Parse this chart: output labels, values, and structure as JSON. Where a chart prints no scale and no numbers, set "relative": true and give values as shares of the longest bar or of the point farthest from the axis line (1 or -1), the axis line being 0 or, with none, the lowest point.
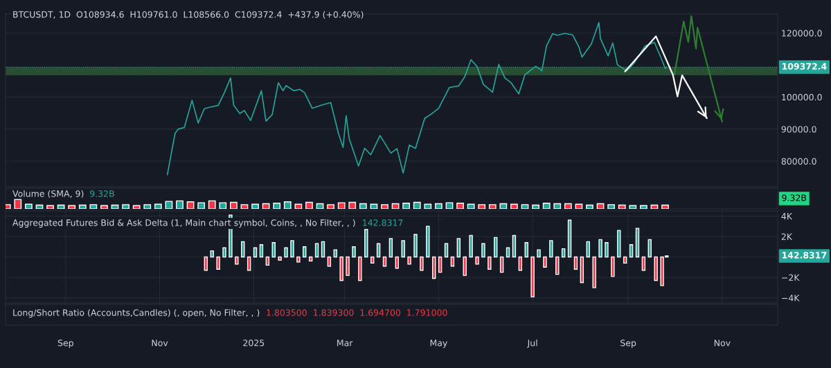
{
  "chart_data": [
    {
      "type": "line",
      "annotations": [
        "BTCUSDT, 1D  O108934.6  H109761.0  L108566.0  C109372.4  +437.9 (+0.40%)"
      ],
      "x": [
        "2024-11-06",
        "2024-11-11",
        "2024-11-13",
        "2024-11-17",
        "2024-11-22",
        "2024-11-26",
        "2024-11-30",
        "2024-12-05",
        "2024-12-09",
        "2024-12-13",
        "2024-12-17",
        "2024-12-19",
        "2024-12-23",
        "2024-12-26",
        "2024-12-30",
        "2025-01-06",
        "2025-01-09",
        "2025-01-13",
        "2025-01-17",
        "2025-01-20",
        "2025-01-22",
        "2025-01-27",
        "2025-01-31",
        "2025-02-03",
        "2025-02-08",
        "2025-02-14",
        "2025-02-20",
        "2025-02-25",
        "2025-02-28",
        "2025-03-02",
        "2025-03-04",
        "2025-03-10",
        "2025-03-14",
        "2025-03-18",
        "2025-03-24",
        "2025-03-31",
        "2025-04-04",
        "2025-04-08",
        "2025-04-12",
        "2025-04-16",
        "2025-04-22",
        "2025-04-26",
        "2025-05-01",
        "2025-05-08",
        "2025-05-14",
        "2025-05-18",
        "2025-05-22",
        "2025-05-26",
        "2025-05-30",
        "2025-06-05",
        "2025-06-09",
        "2025-06-13",
        "2025-06-17",
        "2025-06-22",
        "2025-06-26",
        "2025-07-03",
        "2025-07-07",
        "2025-07-10",
        "2025-07-14",
        "2025-07-17",
        "2025-07-22",
        "2025-07-27",
        "2025-07-31",
        "2025-08-02",
        "2025-08-08",
        "2025-08-13",
        "2025-08-14",
        "2025-08-19",
        "2025-08-22",
        "2025-08-25",
        "2025-08-31",
        "2025-09-05",
        "2025-09-12",
        "2025-09-18",
        "2025-09-22",
        "2025-09-25",
        "2025-09-26"
      ],
      "series": [
        {
          "color": "#26a69a",
          "values": [
            75800,
            88700,
            90000,
            90500,
            99000,
            91900,
            96400,
            97000,
            97400,
            101400,
            106000,
            97500,
            94900,
            95800,
            92700,
            102000,
            92500,
            94500,
            104500,
            102000,
            103600,
            102000,
            102400,
            101400,
            96500,
            97500,
            98300,
            88700,
            84300,
            94200,
            87000,
            78500,
            84000,
            82000,
            88000,
            82500,
            83900,
            76300,
            85000,
            84000,
            93400,
            94600,
            96500,
            103000,
            103500,
            106400,
            111700,
            109500,
            104000,
            101500,
            110200,
            106000,
            104500,
            101000,
            107000,
            109600,
            108200,
            116000,
            119800,
            119300,
            119900,
            119400,
            115700,
            112500,
            116500,
            123300,
            118300,
            112900,
            116900,
            110100,
            108200,
            110700,
            116000,
            117100,
            112600,
            109000,
            109400
          ]
        },
        {
          "color": "#ffffff",
          "x": [
            "2025-08-30",
            "2025-09-19",
            "2025-09-30",
            "2025-10-03",
            "2025-10-06",
            "2025-10-22"
          ],
          "values": [
            108000,
            119000,
            107000,
            100200,
            106800,
            93400
          ]
        },
        {
          "color": "#2e7d32",
          "x": [
            "2025-10-01",
            "2025-10-07",
            "2025-10-10",
            "2025-10-12",
            "2025-10-15",
            "2025-10-16",
            "2025-11-01"
          ],
          "values": [
            107000,
            123600,
            117200,
            125300,
            115100,
            121700,
            92300
          ]
        }
      ],
      "xlim": [
        "2024-07-24",
        "2025-12-07"
      ],
      "ylim": [
        72000,
        126000
      ],
      "yticks": [
        {
          "value": 80000,
          "label": "80000.0"
        },
        {
          "value": 90000,
          "label": "90000.0"
        },
        {
          "value": 100000,
          "label": "100000.0"
        },
        {
          "value": 120000,
          "label": "120000.0"
        }
      ],
      "ref_lines": [
        {
          "axis": "y",
          "value": 109372.4,
          "label": "109372.4",
          "color": "#26a69a",
          "line_style": "dotted"
        }
      ],
      "bands": [
        {
          "axis": "y",
          "from": 107000,
          "to": 109200,
          "color": "#4caf50"
        }
      ],
      "tick_labels": "y",
      "grid": "y"
    },
    {
      "type": "bar",
      "title": "Volume (SMA, 9)",
      "annotations": [
        "9.32B",
        "9.32B"
      ],
      "relative": true,
      "x": [
        "2024-07-25",
        "2024-08-01",
        "2024-08-08",
        "2024-08-15",
        "2024-08-22",
        "2024-08-29",
        "2024-09-05",
        "2024-09-12",
        "2024-09-19",
        "2024-09-26",
        "2024-10-03",
        "2024-10-10",
        "2024-10-17",
        "2024-10-24",
        "2024-10-31",
        "2024-11-07",
        "2024-11-14",
        "2024-11-21",
        "2024-11-28",
        "2024-12-05",
        "2024-12-12",
        "2024-12-19",
        "2024-12-26",
        "2025-01-02",
        "2025-01-09",
        "2025-01-16",
        "2025-01-23",
        "2025-01-30",
        "2025-02-06",
        "2025-02-13",
        "2025-02-20",
        "2025-02-27",
        "2025-03-06",
        "2025-03-13",
        "2025-03-20",
        "2025-03-27",
        "2025-04-03",
        "2025-04-10",
        "2025-04-17",
        "2025-04-24",
        "2025-05-01",
        "2025-05-08",
        "2025-05-15",
        "2025-05-22",
        "2025-05-29",
        "2025-06-05",
        "2025-06-12",
        "2025-06-19",
        "2025-06-26",
        "2025-07-03",
        "2025-07-10",
        "2025-07-17",
        "2025-07-24",
        "2025-07-31",
        "2025-08-07",
        "2025-08-14",
        "2025-08-21",
        "2025-08-28",
        "2025-09-04",
        "2025-09-11",
        "2025-09-18",
        "2025-09-25"
      ],
      "values": [
        0.45,
        1.0,
        0.5,
        0.4,
        0.35,
        0.4,
        0.35,
        0.4,
        0.45,
        0.35,
        0.4,
        0.45,
        0.35,
        0.45,
        0.5,
        0.8,
        0.85,
        0.75,
        0.65,
        0.85,
        0.65,
        0.7,
        0.45,
        0.5,
        0.55,
        0.6,
        0.75,
        0.5,
        0.7,
        0.55,
        0.45,
        0.65,
        0.7,
        0.55,
        0.5,
        0.45,
        0.55,
        0.6,
        0.7,
        0.5,
        0.55,
        0.65,
        0.6,
        0.5,
        0.45,
        0.45,
        0.55,
        0.5,
        0.45,
        0.4,
        0.6,
        0.55,
        0.55,
        0.5,
        0.4,
        0.55,
        0.45,
        0.4,
        0.35,
        0.35,
        0.4,
        0.4
      ],
      "colors": [
        "#f23645",
        "#f23645",
        "#26a69a",
        "#26a69a",
        "#f23645",
        "#26a69a",
        "#f23645",
        "#26a69a",
        "#26a69a",
        "#f23645",
        "#26a69a",
        "#26a69a",
        "#f23645",
        "#26a69a",
        "#26a69a",
        "#26a69a",
        "#26a69a",
        "#f23645",
        "#26a69a",
        "#f23645",
        "#26a69a",
        "#f23645",
        "#f23645",
        "#26a69a",
        "#f23645",
        "#26a69a",
        "#26a69a",
        "#f23645",
        "#f23645",
        "#26a69a",
        "#f23645",
        "#f23645",
        "#f23645",
        "#26a69a",
        "#26a69a",
        "#f23645",
        "#f23645",
        "#26a69a",
        "#26a69a",
        "#26a69a",
        "#26a69a",
        "#26a69a",
        "#f23645",
        "#26a69a",
        "#f23645",
        "#f23645",
        "#26a69a",
        "#f23645",
        "#26a69a",
        "#26a69a",
        "#26a69a",
        "#26a69a",
        "#f23645",
        "#f23645",
        "#26a69a",
        "#f23645",
        "#26a69a",
        "#f23645",
        "#26a69a",
        "#26a69a",
        "#f23645",
        "#f23645"
      ],
      "xlim": [
        "2024-07-24",
        "2025-12-07"
      ],
      "tick_labels": false
    },
    {
      "type": "bar",
      "title": "Aggregated Futures Bid & Ask Delta (1, Main chart symbol, Coins, , No Filter, , )",
      "annotations": [
        "142.8317",
        "142.8317"
      ],
      "x": [
        "2024-12-01",
        "2024-12-05",
        "2024-12-09",
        "2024-12-13",
        "2024-12-17",
        "2024-12-21",
        "2024-12-25",
        "2024-12-29",
        "2025-01-02",
        "2025-01-06",
        "2025-01-10",
        "2025-01-14",
        "2025-01-18",
        "2025-01-22",
        "2025-01-26",
        "2025-01-30",
        "2025-02-03",
        "2025-02-07",
        "2025-02-11",
        "2025-02-15",
        "2025-02-19",
        "2025-02-23",
        "2025-02-27",
        "2025-03-03",
        "2025-03-07",
        "2025-03-11",
        "2025-03-15",
        "2025-03-19",
        "2025-03-23",
        "2025-03-27",
        "2025-03-31",
        "2025-04-04",
        "2025-04-08",
        "2025-04-12",
        "2025-04-16",
        "2025-04-20",
        "2025-04-24",
        "2025-04-28",
        "2025-05-02",
        "2025-05-06",
        "2025-05-10",
        "2025-05-14",
        "2025-05-18",
        "2025-05-22",
        "2025-05-26",
        "2025-05-30",
        "2025-06-03",
        "2025-06-07",
        "2025-06-11",
        "2025-06-15",
        "2025-06-19",
        "2025-06-23",
        "2025-06-27",
        "2025-07-01",
        "2025-07-05",
        "2025-07-09",
        "2025-07-13",
        "2025-07-17",
        "2025-07-21",
        "2025-07-25",
        "2025-07-29",
        "2025-08-02",
        "2025-08-06",
        "2025-08-10",
        "2025-08-14",
        "2025-08-18",
        "2025-08-22",
        "2025-08-26",
        "2025-08-30",
        "2025-09-03",
        "2025-09-07",
        "2025-09-11",
        "2025-09-15",
        "2025-09-19",
        "2025-09-23",
        "2025-09-26"
      ],
      "values": [
        -1300,
        600,
        -1200,
        900,
        4100,
        -700,
        1500,
        -1300,
        900,
        1200,
        -800,
        1400,
        -300,
        900,
        1600,
        -500,
        1000,
        -400,
        1300,
        1500,
        -900,
        700,
        -2300,
        -1800,
        1000,
        -2300,
        2700,
        -600,
        1300,
        -900,
        1800,
        -1100,
        1600,
        -700,
        2200,
        -1300,
        3000,
        -2100,
        -1500,
        1300,
        -900,
        1800,
        -1800,
        2100,
        -700,
        1300,
        -1200,
        1900,
        -1500,
        900,
        2100,
        -1300,
        1400,
        -3900,
        700,
        -1000,
        1600,
        -1700,
        800,
        3600,
        -1200,
        -2500,
        1500,
        -3000,
        1700,
        1400,
        -1900,
        2600,
        -600,
        1200,
        2800,
        -1300,
        1700,
        -2300,
        -2800,
        100
      ],
      "colors": [
        "#f23645",
        "#26a69a",
        "#f23645",
        "#26a69a",
        "#26a69a",
        "#f23645",
        "#26a69a",
        "#f23645",
        "#26a69a",
        "#26a69a",
        "#f23645",
        "#26a69a",
        "#f23645",
        "#26a69a",
        "#26a69a",
        "#f23645",
        "#26a69a",
        "#f23645",
        "#26a69a",
        "#26a69a",
        "#f23645",
        "#26a69a",
        "#f23645",
        "#f23645",
        "#26a69a",
        "#f23645",
        "#26a69a",
        "#f23645",
        "#26a69a",
        "#f23645",
        "#26a69a",
        "#f23645",
        "#26a69a",
        "#f23645",
        "#26a69a",
        "#f23645",
        "#26a69a",
        "#f23645",
        "#f23645",
        "#26a69a",
        "#f23645",
        "#26a69a",
        "#f23645",
        "#26a69a",
        "#f23645",
        "#26a69a",
        "#f23645",
        "#26a69a",
        "#f23645",
        "#26a69a",
        "#26a69a",
        "#f23645",
        "#26a69a",
        "#f23645",
        "#26a69a",
        "#f23645",
        "#26a69a",
        "#f23645",
        "#26a69a",
        "#26a69a",
        "#f23645",
        "#f23645",
        "#26a69a",
        "#f23645",
        "#26a69a",
        "#26a69a",
        "#f23645",
        "#26a69a",
        "#f23645",
        "#26a69a",
        "#26a69a",
        "#f23645",
        "#26a69a",
        "#f23645",
        "#f23645",
        "#26a69a"
      ],
      "xlim": [
        "2024-07-24",
        "2025-12-07"
      ],
      "ylim": [
        -4500,
        4500
      ],
      "yticks": [
        {
          "value": -4000,
          "label": "−4K"
        },
        {
          "value": -2000,
          "label": "−2K"
        },
        {
          "value": 0,
          "label": null
        },
        {
          "value": 2000,
          "label": "2K"
        },
        {
          "value": 4000,
          "label": "4K"
        }
      ],
      "xticks": [
        {
          "value": "2024-09-01",
          "label": "Sep"
        },
        {
          "value": "2024-11-01",
          "label": "Nov"
        },
        {
          "value": "2025-01-01",
          "label": "2025"
        },
        {
          "value": "2025-03-01",
          "label": "Mar"
        },
        {
          "value": "2025-05-01",
          "label": "May"
        },
        {
          "value": "2025-07-01",
          "label": "Jul"
        },
        {
          "value": "2025-09-01",
          "label": "Sep"
        },
        {
          "value": "2025-11-01",
          "label": "Nov"
        }
      ],
      "grid": true
    },
    {
      "type": "other",
      "title": "Long/Short Ratio (Accounts,Candles) (, open, No Filter, , )",
      "annotations": [
        "1.803500",
        "1.839300",
        "1.694700",
        "1.791000"
      ]
    }
  ]
}
